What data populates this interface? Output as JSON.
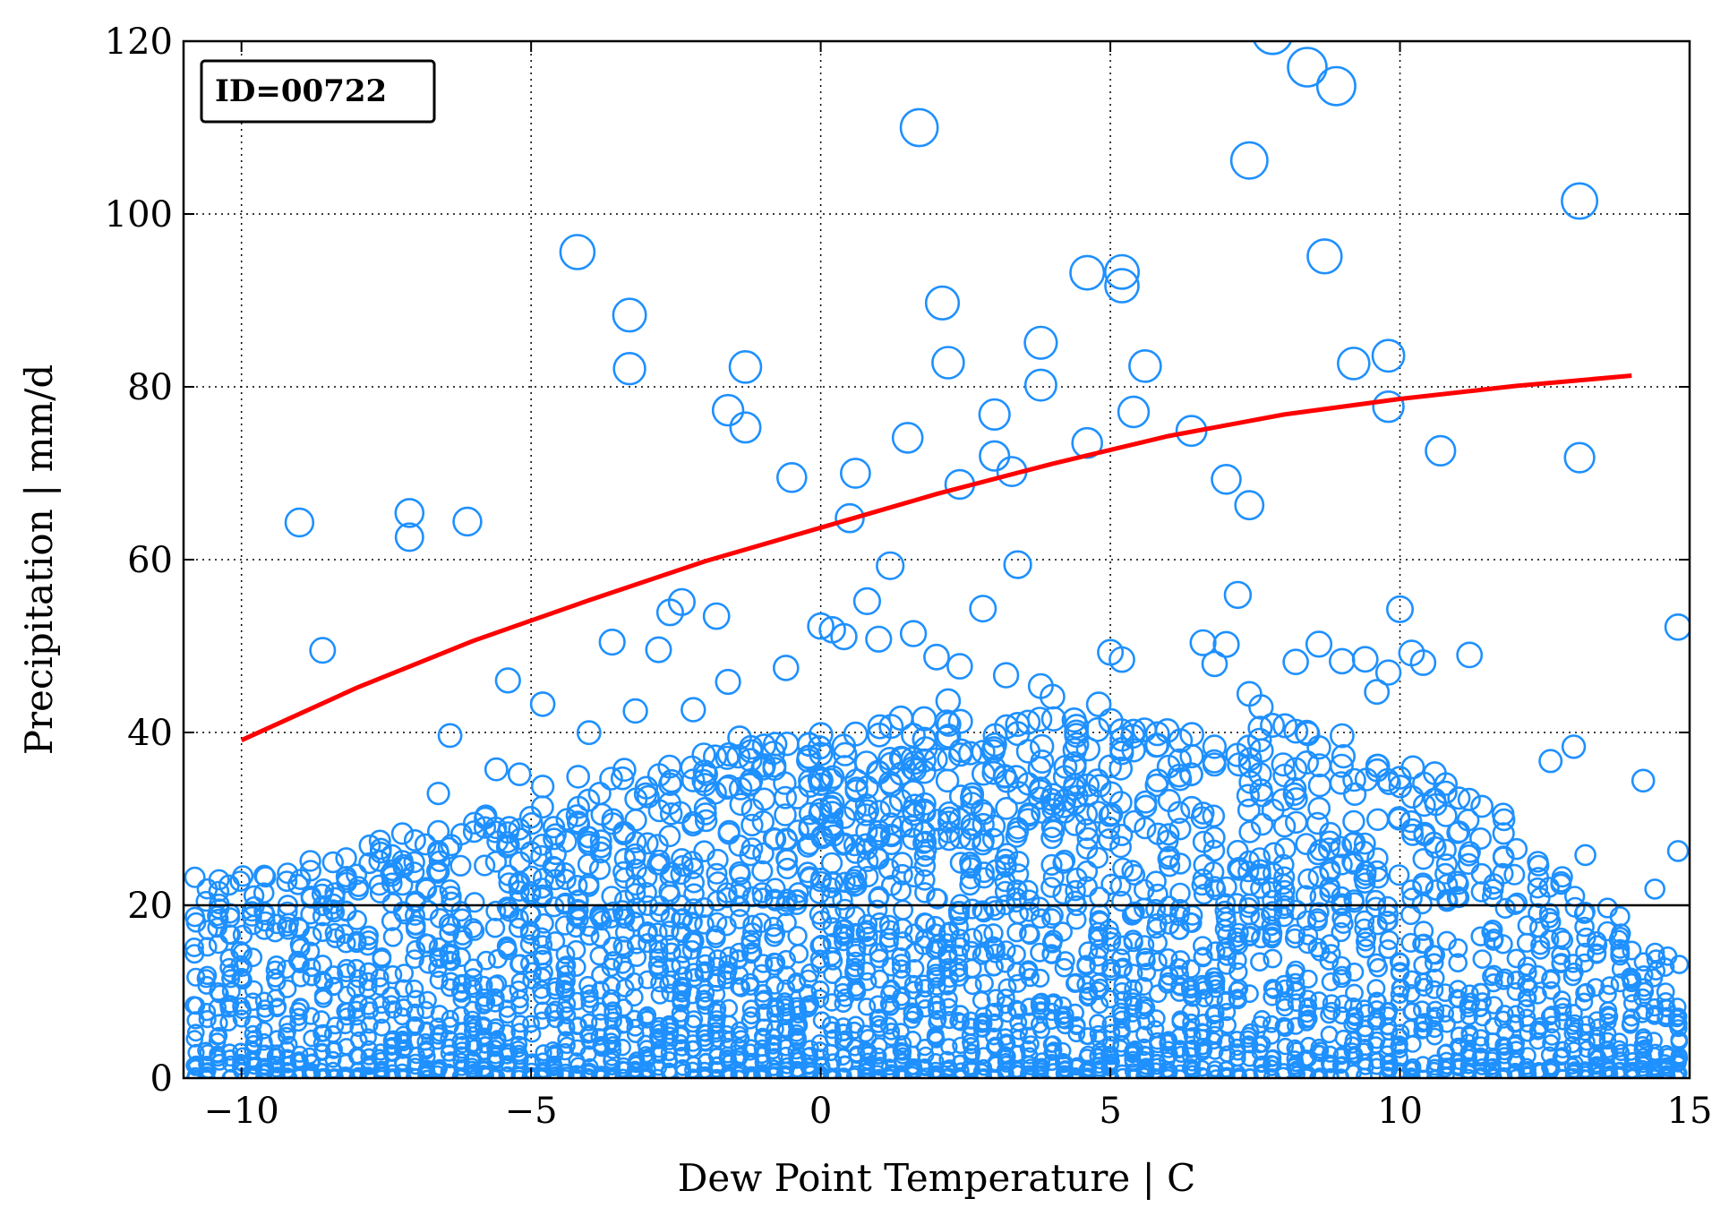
{
  "chart_data": {
    "type": "scatter",
    "title": "",
    "annotation": "ID=00722",
    "xlabel": "Dew Point Temperature | C",
    "ylabel": "Precipitation | mm/d",
    "xlim": [
      -11,
      15
    ],
    "ylim": [
      0,
      120
    ],
    "x_ticks": [
      -10,
      -5,
      0,
      5,
      10,
      15
    ],
    "x_tick_labels": [
      "−10",
      "−5",
      "0",
      "5",
      "10",
      "15"
    ],
    "y_ticks": [
      0,
      20,
      40,
      60,
      80,
      100,
      120
    ],
    "y_tick_labels": [
      "0",
      "20",
      "40",
      "60",
      "80",
      "100",
      "120"
    ],
    "grid": true,
    "colors": {
      "points": "#1e90ff",
      "fit_line": "#ff0000",
      "threshold_line": "#000000"
    },
    "threshold_line": {
      "y": 20
    },
    "fit_line": {
      "x": [
        -10,
        -8,
        -6,
        -4,
        -2,
        0,
        2,
        4,
        6,
        8,
        10,
        12,
        14
      ],
      "y": [
        39.1,
        45.2,
        50.6,
        55.3,
        59.8,
        63.7,
        67.6,
        71.1,
        74.3,
        76.8,
        78.6,
        80.1,
        81.3
      ]
    },
    "outlier_points": {
      "x": [
        -9,
        -8.6,
        -7.1,
        -7.1,
        -6.1,
        -4.2,
        -3.3,
        -3.3,
        -1.6,
        -1.3,
        -1.3,
        -0.5,
        0.5,
        0.6,
        1.5,
        1.7,
        2.1,
        2.2,
        2.4,
        3,
        3,
        3.3,
        3.8,
        3.8,
        4.6,
        4.6,
        5.2,
        5.2,
        5.4,
        5.6,
        6.4,
        7,
        7.4,
        7.4,
        7.8,
        8.4,
        8.7,
        8.9,
        9.2,
        9.8,
        9.8,
        10.7,
        13.1,
        13.1,
        14.8
      ],
      "y": [
        64.3,
        49.5,
        65.4,
        62.6,
        64.4,
        95.6,
        88.3,
        82.1,
        77.3,
        82.3,
        75.3,
        69.5,
        64.8,
        70,
        74.1,
        110,
        89.7,
        82.8,
        68.7,
        72,
        76.8,
        70.2,
        85.1,
        80.2,
        93.2,
        73.5,
        93.3,
        91.7,
        77.1,
        82.4,
        74.9,
        69.3,
        106.2,
        66.3,
        120.8,
        117,
        95.1,
        114.8,
        82.7,
        83.6,
        77.7,
        72.6,
        101.5,
        71.8,
        52.2
      ]
    }
  }
}
